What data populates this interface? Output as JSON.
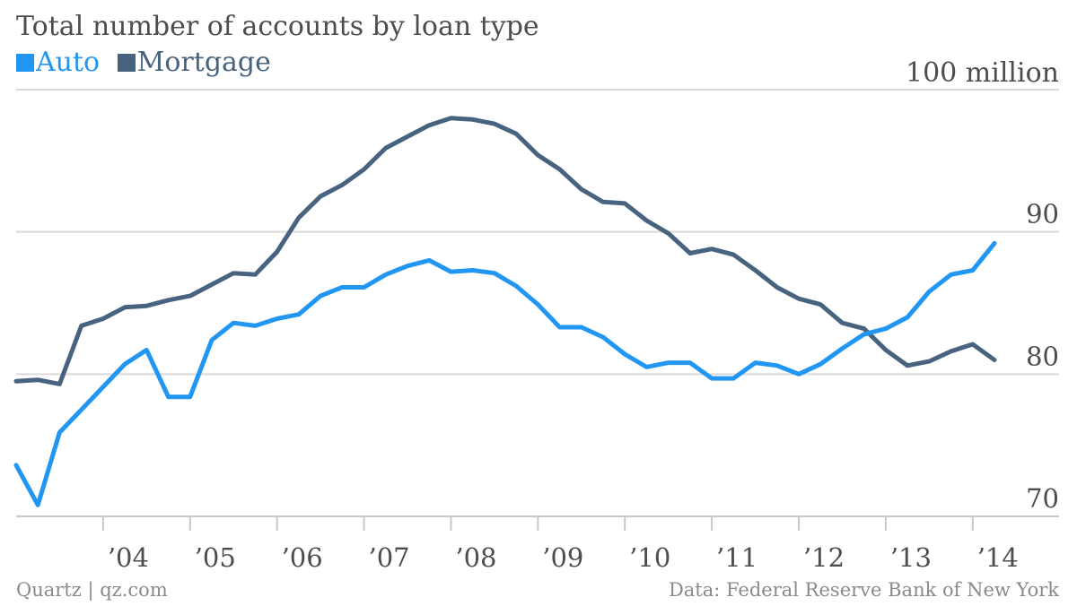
{
  "header": {
    "title": "Total number of accounts by loan type",
    "unit_label": "100 million"
  },
  "footer": {
    "source_left": "Quartz | qz.com",
    "source_right": "Data: Federal Reserve Bank of New York"
  },
  "colors": {
    "auto": "#2196f3",
    "mortgage": "#48637f",
    "grid": "#d9d9d9",
    "axis": "#c8c8c8"
  },
  "chart_data": {
    "type": "line",
    "title": "Total number of accounts by loan type",
    "ylim": [
      70,
      100
    ],
    "xlim": [
      2003.0,
      2014.5
    ],
    "y_ticks": [
      {
        "value": 90,
        "label": "90"
      },
      {
        "value": 80,
        "label": "80"
      },
      {
        "value": 70,
        "label": "70"
      }
    ],
    "x_ticks": [
      {
        "value": 2004,
        "label": "’04"
      },
      {
        "value": 2005,
        "label": "’05"
      },
      {
        "value": 2006,
        "label": "’06"
      },
      {
        "value": 2007,
        "label": "’07"
      },
      {
        "value": 2008,
        "label": "’08"
      },
      {
        "value": 2009,
        "label": "’09"
      },
      {
        "value": 2010,
        "label": "’10"
      },
      {
        "value": 2011,
        "label": "’11"
      },
      {
        "value": 2012,
        "label": "’12"
      },
      {
        "value": 2013,
        "label": "’13"
      },
      {
        "value": 2014,
        "label": "’14"
      }
    ],
    "grid": true,
    "legend_position": "top-left",
    "x": [
      2003.0,
      2003.25,
      2003.5,
      2003.75,
      2004.0,
      2004.25,
      2004.5,
      2004.75,
      2005.0,
      2005.25,
      2005.5,
      2005.75,
      2006.0,
      2006.25,
      2006.5,
      2006.75,
      2007.0,
      2007.25,
      2007.5,
      2007.75,
      2008.0,
      2008.25,
      2008.5,
      2008.75,
      2009.0,
      2009.25,
      2009.5,
      2009.75,
      2010.0,
      2010.25,
      2010.5,
      2010.75,
      2011.0,
      2011.25,
      2011.5,
      2011.75,
      2012.0,
      2012.25,
      2012.5,
      2012.75,
      2013.0,
      2013.25,
      2013.5,
      2013.75,
      2014.0,
      2014.25
    ],
    "series": [
      {
        "name": "Auto",
        "color": "#2196f3",
        "values": [
          73.6,
          70.8,
          75.9,
          77.5,
          79.1,
          80.7,
          81.7,
          78.4,
          78.4,
          82.4,
          83.6,
          83.4,
          83.9,
          84.2,
          85.5,
          86.1,
          86.1,
          87.0,
          87.6,
          88.0,
          87.2,
          87.3,
          87.1,
          86.2,
          84.9,
          83.3,
          83.3,
          82.6,
          81.4,
          80.5,
          80.8,
          80.8,
          79.7,
          79.7,
          80.8,
          80.6,
          80.0,
          80.7,
          81.8,
          82.8,
          83.2,
          84.0,
          85.8,
          87.0,
          87.3,
          89.2
        ]
      },
      {
        "name": "Mortgage",
        "color": "#48637f",
        "values": [
          79.5,
          79.6,
          79.3,
          83.4,
          83.9,
          84.7,
          84.8,
          85.2,
          85.5,
          86.3,
          87.1,
          87.0,
          88.6,
          91.0,
          92.5,
          93.3,
          94.4,
          95.9,
          96.7,
          97.5,
          98.0,
          97.9,
          97.6,
          96.9,
          95.4,
          94.4,
          93.0,
          92.1,
          92.0,
          90.8,
          89.9,
          88.5,
          88.8,
          88.4,
          87.3,
          86.1,
          85.3,
          84.9,
          83.6,
          83.2,
          81.7,
          80.6,
          80.9,
          81.6,
          82.1,
          81.0
        ]
      }
    ]
  }
}
